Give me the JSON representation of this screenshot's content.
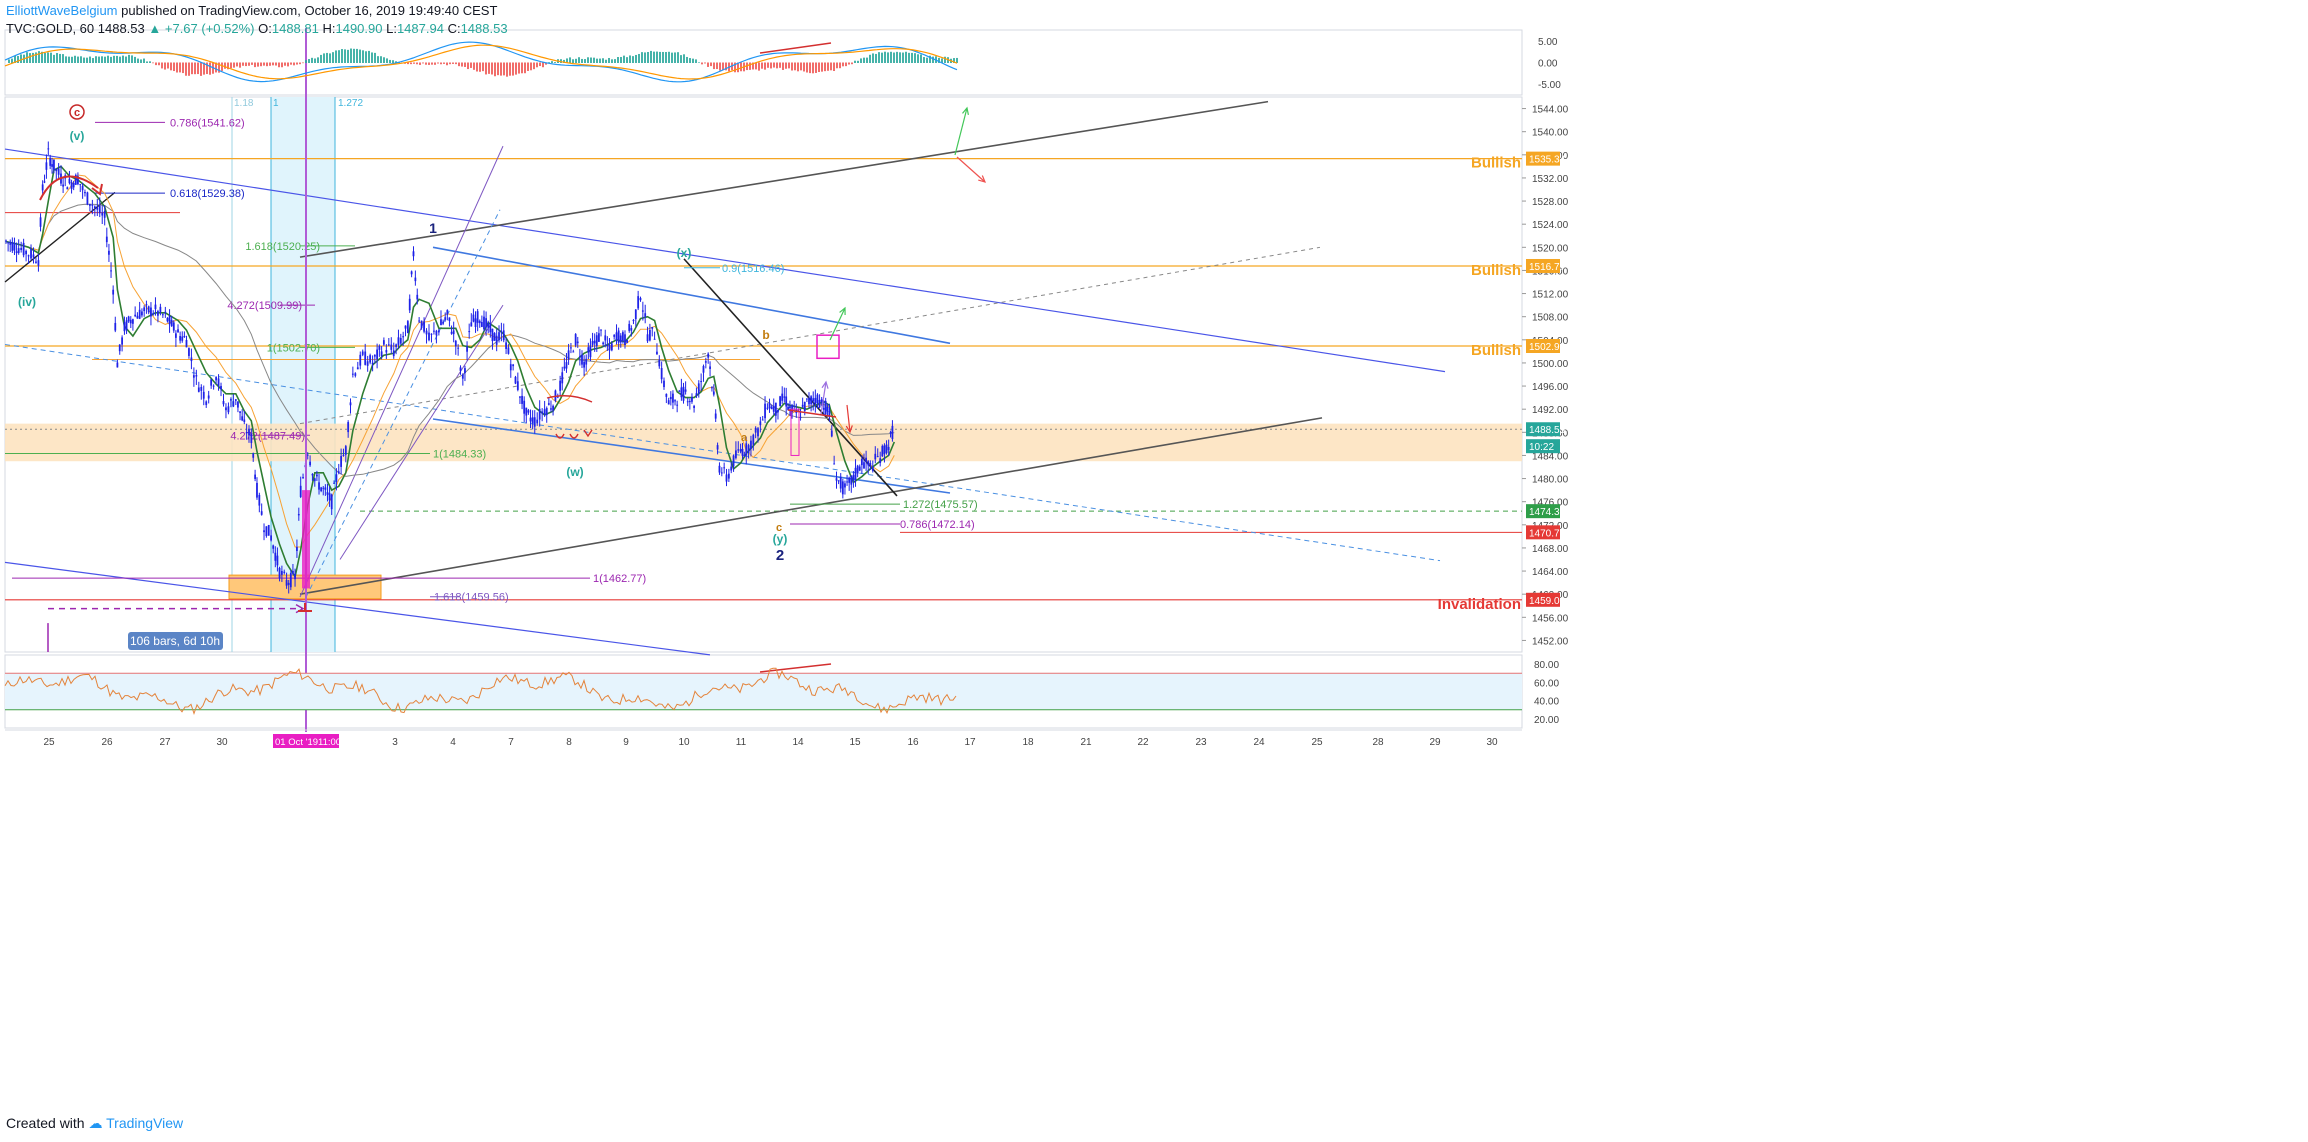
{
  "header": {
    "author": "ElliottWaveBelgium",
    "published": "published on TradingView.com, October 16, 2019 19:49:40 CEST",
    "symbol": "TVC:GOLD, 60",
    "last": "1488.53",
    "change": "▲ +7.67 (+0.52%)",
    "o_label": "O:",
    "o": "1488.81",
    "h_label": "H:",
    "h": "1490.90",
    "l_label": "L:",
    "l": "1487.94",
    "c_label": "C:",
    "c": "1488.53"
  },
  "footer": {
    "created_with": "Created with",
    "brand": "TradingView"
  },
  "colors": {
    "candle": "#1e22e8",
    "ema_fast": "#2e7d32",
    "ema_slow": "#f7a335",
    "sma": "#888888",
    "channel": "#4a55e8",
    "trend": "#555555",
    "bullish": "#f5a623",
    "invalidation": "#e53935",
    "zone": "#fde3c0",
    "fib_purple": "#9c27b0",
    "fib_green": "#4caf50",
    "macd_fast": "#2196f3",
    "macd_slow": "#ff9800",
    "rsi": "#e4833a",
    "highlight": "#e91ec3"
  },
  "chart_data": [
    {
      "type": "candlestick",
      "title": "TVC:GOLD, 60",
      "ylim": [
        1450,
        1546
      ],
      "y_ticks": [
        1452.0,
        1456.0,
        1460.0,
        1464.0,
        1468.0,
        1472.0,
        1476.0,
        1480.0,
        1484.0,
        1488.0,
        1492.0,
        1496.0,
        1500.0,
        1504.0,
        1508.0,
        1512.0,
        1516.0,
        1520.0,
        1524.0,
        1528.0,
        1532.0,
        1536.0,
        1540.0,
        1544.0
      ],
      "x_labels": [
        "25",
        "26",
        "27",
        "30",
        "01 Oct '19",
        "3",
        "4",
        "7",
        "8",
        "9",
        "10",
        "11",
        "14",
        "15",
        "16",
        "17",
        "18",
        "21",
        "22",
        "23",
        "24",
        "25",
        "28",
        "29",
        "30"
      ],
      "crosshair_time": "11:00",
      "close_price": [
        [
          0.0,
          1521
        ],
        [
          0.9,
          1520
        ],
        [
          1.6,
          1519
        ],
        [
          2.3,
          1518
        ],
        [
          2.6,
          1530
        ],
        [
          3.0,
          1536
        ],
        [
          3.4,
          1534
        ],
        [
          3.9,
          1532
        ],
        [
          4.5,
          1531
        ],
        [
          5.1,
          1532
        ],
        [
          5.6,
          1529
        ],
        [
          6.3,
          1527
        ],
        [
          7.0,
          1525
        ],
        [
          7.6,
          1513
        ],
        [
          7.9,
          1500
        ],
        [
          8.4,
          1506
        ],
        [
          9.0,
          1508
        ],
        [
          9.8,
          1509
        ],
        [
          10.6,
          1509
        ],
        [
          11.3,
          1508
        ],
        [
          12.2,
          1505
        ],
        [
          12.8,
          1504
        ],
        [
          13.5,
          1497
        ],
        [
          14.2,
          1494
        ],
        [
          14.9,
          1498
        ],
        [
          15.6,
          1492
        ],
        [
          16.3,
          1494
        ],
        [
          16.9,
          1489
        ],
        [
          17.4,
          1487
        ],
        [
          17.8,
          1478
        ],
        [
          18.3,
          1472
        ],
        [
          18.8,
          1470
        ],
        [
          19.4,
          1464
        ],
        [
          19.9,
          1462
        ],
        [
          20.5,
          1463
        ],
        [
          20.9,
          1478
        ],
        [
          21.4,
          1485
        ],
        [
          21.9,
          1480
        ],
        [
          22.5,
          1478
        ],
        [
          23.1,
          1476
        ],
        [
          23.6,
          1482
        ],
        [
          24.1,
          1485
        ],
        [
          24.6,
          1498
        ],
        [
          25.3,
          1501
        ],
        [
          26.0,
          1500
        ],
        [
          26.8,
          1503
        ],
        [
          27.5,
          1502
        ],
        [
          28.0,
          1504
        ],
        [
          28.5,
          1506
        ],
        [
          28.9,
          1519
        ],
        [
          29.3,
          1508
        ],
        [
          30.0,
          1504
        ],
        [
          30.7,
          1506
        ],
        [
          31.3,
          1508
        ],
        [
          31.9,
          1504
        ],
        [
          32.4,
          1497
        ],
        [
          33.0,
          1507
        ],
        [
          33.6,
          1508
        ],
        [
          34.2,
          1506
        ],
        [
          34.8,
          1504
        ],
        [
          35.3,
          1505
        ],
        [
          35.8,
          1500
        ],
        [
          36.3,
          1496
        ],
        [
          36.9,
          1491
        ],
        [
          37.5,
          1490
        ],
        [
          38.2,
          1492
        ],
        [
          38.8,
          1493
        ],
        [
          39.3,
          1496
        ],
        [
          39.9,
          1501
        ],
        [
          40.4,
          1504
        ],
        [
          41.0,
          1500
        ],
        [
          41.6,
          1503
        ],
        [
          42.2,
          1505
        ],
        [
          42.8,
          1502
        ],
        [
          43.3,
          1505
        ],
        [
          43.9,
          1504
        ],
        [
          44.5,
          1507
        ],
        [
          45.0,
          1512
        ],
        [
          45.5,
          1505
        ],
        [
          46.0,
          1505
        ],
        [
          46.5,
          1498
        ],
        [
          47.0,
          1493
        ],
        [
          47.6,
          1494
        ],
        [
          48.2,
          1495
        ],
        [
          48.8,
          1493
        ],
        [
          49.3,
          1497
        ],
        [
          49.8,
          1502
        ],
        [
          50.2,
          1494
        ],
        [
          50.6,
          1482
        ],
        [
          51.1,
          1480
        ],
        [
          51.6,
          1483
        ],
        [
          52.1,
          1485
        ],
        [
          52.5,
          1485
        ],
        [
          53.0,
          1487
        ],
        [
          53.5,
          1489
        ],
        [
          54.0,
          1493
        ],
        [
          54.6,
          1492
        ],
        [
          55.2,
          1494
        ],
        [
          55.6,
          1492
        ],
        [
          56.2,
          1491
        ],
        [
          56.8,
          1493
        ],
        [
          57.4,
          1494
        ],
        [
          58.0,
          1493
        ],
        [
          58.4,
          1491
        ],
        [
          58.9,
          1480
        ],
        [
          59.5,
          1478
        ],
        [
          60.1,
          1480
        ],
        [
          60.7,
          1483
        ],
        [
          61.3,
          1482
        ],
        [
          62.0,
          1484
        ],
        [
          62.6,
          1486
        ],
        [
          63.0,
          1489
        ]
      ],
      "price_labels": [
        "1535.34",
        "1516.77",
        "1502.93",
        "1488.53",
        "10:22",
        "1474.36",
        "1470.70",
        "1459.03"
      ],
      "zone_labels": [
        "Bullish",
        "Bullish",
        "Bullish",
        "Invalidation"
      ],
      "fib_levels": [
        "0.786(1541.62)",
        "0.618(1529.38)",
        "1.618(1520.25)",
        "4.272(1509.99)",
        "1(1502.70)",
        "4.272(1487.49)",
        "1(1484.33)",
        "0.9(1516.46)",
        "1(1462.77)",
        "1.618(1459.56)",
        "1.272(1475.57)",
        "0.786(1472.14)"
      ],
      "fib_time": [
        "1.18",
        "1",
        "1.272"
      ],
      "wave_labels": [
        "c",
        "(v)",
        "(iv)",
        "1",
        "(w)",
        "(x)",
        "b",
        "a",
        "c",
        "(y)",
        "2"
      ],
      "range_label": "106 bars, 6d 10h"
    },
    {
      "type": "bar",
      "title": "MACD",
      "ylim": [
        -7.5,
        7.5
      ],
      "y_ticks": [
        "5.00",
        "0.00",
        "-5.00"
      ]
    },
    {
      "type": "line",
      "title": "RSI",
      "ylim": [
        10,
        90
      ],
      "y_ticks": [
        "80.00",
        "60.00",
        "40.00",
        "20.00"
      ],
      "bands": [
        70,
        30
      ]
    }
  ]
}
